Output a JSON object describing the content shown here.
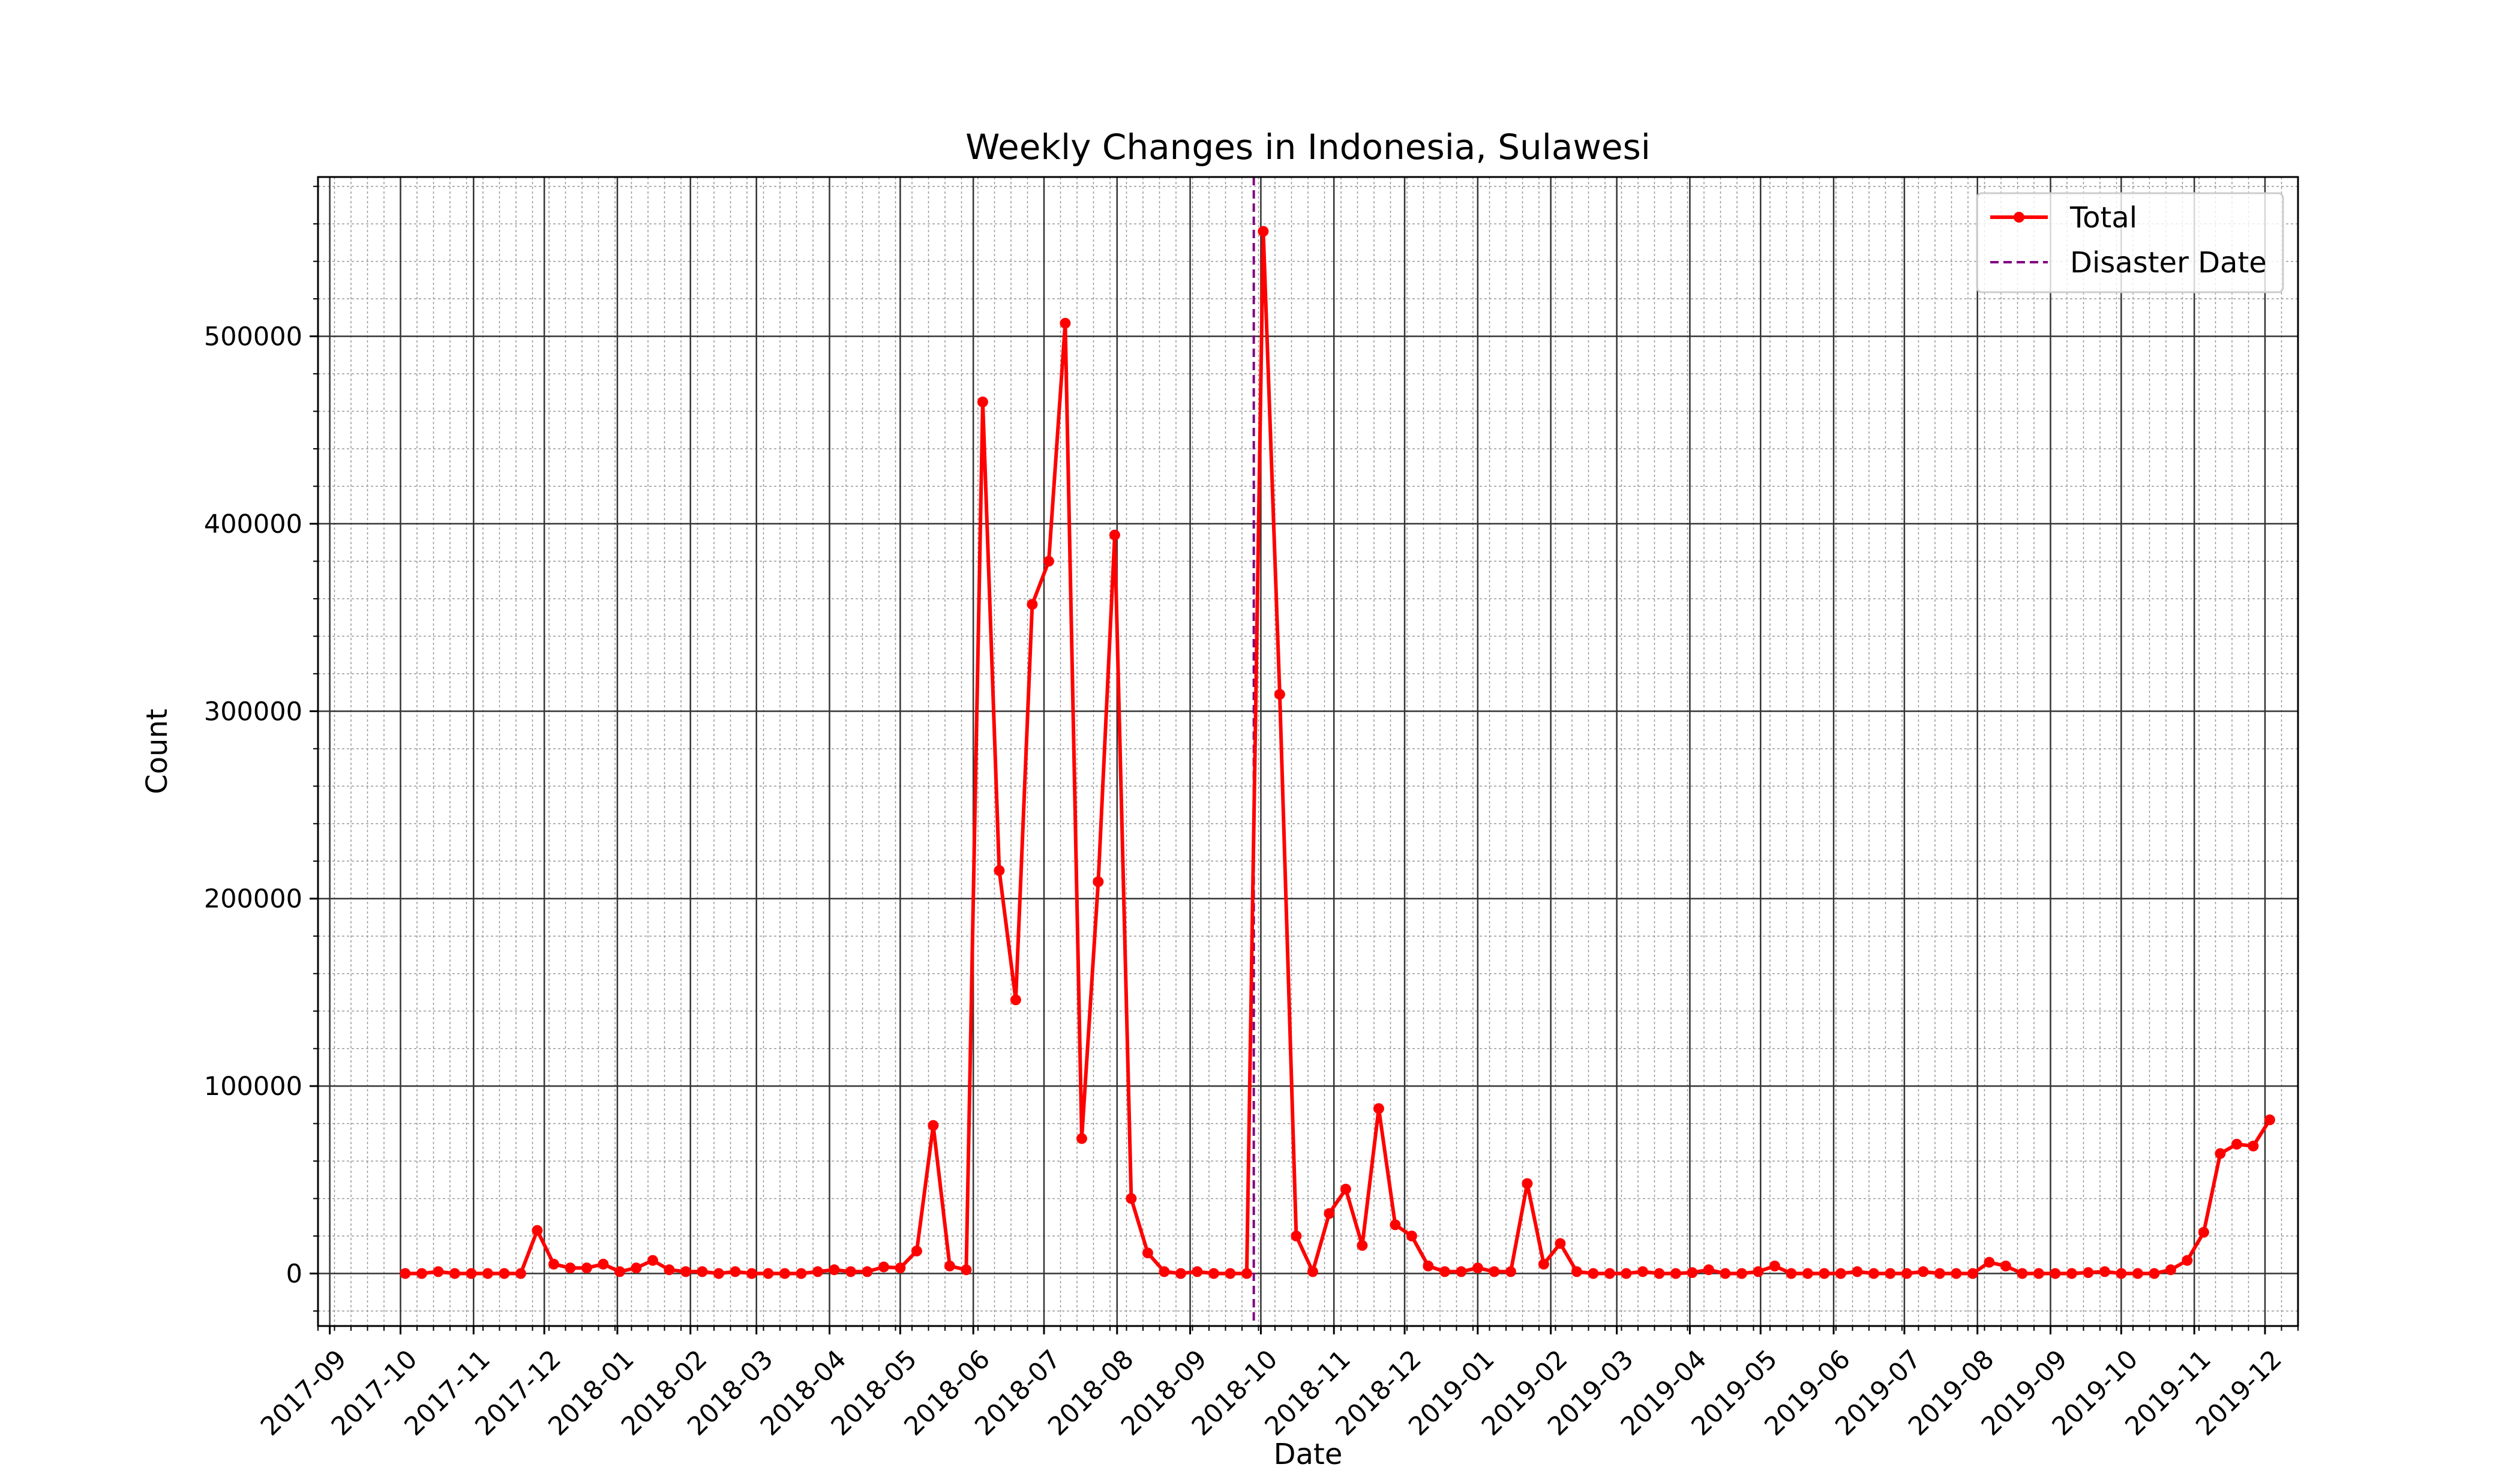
{
  "chart_data": {
    "type": "line",
    "title": "Weekly Changes in Indonesia, Sulawesi",
    "xlabel": "Date",
    "ylabel": "Count",
    "x_range": [
      "2017-08-27",
      "2019-12-15"
    ],
    "ylim": [
      -28000,
      585000
    ],
    "y_ticks": [
      0,
      100000,
      200000,
      300000,
      400000,
      500000
    ],
    "x_ticks": [
      "2017-09",
      "2017-10",
      "2017-11",
      "2017-12",
      "2018-01",
      "2018-02",
      "2018-03",
      "2018-04",
      "2018-05",
      "2018-06",
      "2018-07",
      "2018-08",
      "2018-09",
      "2018-10",
      "2018-11",
      "2018-12",
      "2019-01",
      "2019-02",
      "2019-03",
      "2019-04",
      "2019-05",
      "2019-06",
      "2019-07",
      "2019-08",
      "2019-09",
      "2019-10",
      "2019-11",
      "2019-12"
    ],
    "grid": true,
    "legend_position": "top-right",
    "series": [
      {
        "name": "Total",
        "color": "#ff0000",
        "marker": "circle",
        "start_date": "2017-10-03",
        "interval_days": 7,
        "values": [
          0,
          0,
          1000,
          0,
          0,
          0,
          0,
          0,
          23000,
          5000,
          3000,
          3000,
          5000,
          1000,
          3000,
          7000,
          2000,
          1000,
          1000,
          0,
          1000,
          0,
          0,
          0,
          0,
          1000,
          2000,
          1000,
          1000,
          3500,
          3000,
          12000,
          79000,
          4000,
          2000,
          465000,
          215000,
          146000,
          357000,
          380000,
          507000,
          72000,
          209000,
          394000,
          40000,
          11000,
          1000,
          0,
          1000,
          0,
          0,
          0,
          556000,
          309000,
          20000,
          1000,
          32000,
          45000,
          15000,
          88000,
          26000,
          20000,
          4000,
          1000,
          1000,
          3000,
          1000,
          1000,
          48000,
          5000,
          16000,
          1000,
          0,
          0,
          0,
          1000,
          0,
          0,
          500,
          2000,
          0,
          0,
          1000,
          4000,
          0,
          0,
          0,
          0,
          1000,
          0,
          0,
          0,
          1000,
          0,
          0,
          0,
          6000,
          4000,
          0,
          0,
          0,
          0,
          500,
          1000,
          0,
          0,
          0,
          2000,
          7000,
          22000,
          64000,
          69000,
          68000,
          82000
        ]
      },
      {
        "name": "Disaster Date",
        "color": "#800080",
        "style": "dashed",
        "type": "vline",
        "date": "2018-09-28"
      }
    ]
  }
}
